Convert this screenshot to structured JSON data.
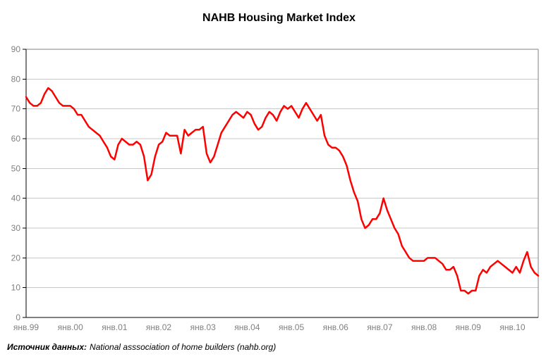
{
  "title": "NAHB Housing Market Index",
  "source_note": {
    "label": "Источник данных:",
    "text": "National asssociation of home builders (nahb.org)"
  },
  "colors": {
    "line": "#FF0000",
    "gridline": "#C8C8C8",
    "plot_border": "#808080",
    "axis": "#000000",
    "tick_label": "#808080",
    "background": "#FFFFFF"
  },
  "chart_data": {
    "type": "line",
    "title": "NAHB Housing Market Index",
    "xlabel": "",
    "ylabel": "",
    "ylim": [
      0,
      90
    ],
    "y_ticks": [
      0,
      10,
      20,
      30,
      40,
      50,
      60,
      70,
      80,
      90
    ],
    "x_tick_labels": [
      "янв.99",
      "янв.00",
      "янв.01",
      "янв.02",
      "янв.03",
      "янв.04",
      "янв.05",
      "янв.06",
      "янв.07",
      "янв.08",
      "янв.09",
      "янв.10"
    ],
    "grid": "horizontal",
    "legend_position": "none",
    "frequency": "monthly",
    "start_month": "1999-01",
    "end_month": "2010-08",
    "series": [
      {
        "name": "NAHB Housing Market Index",
        "values": [
          74,
          72,
          71,
          71,
          72,
          75,
          77,
          76,
          74,
          72,
          71,
          71,
          71,
          70,
          68,
          68,
          66,
          64,
          63,
          62,
          61,
          59,
          57,
          54,
          53,
          58,
          60,
          59,
          58,
          58,
          59,
          58,
          54,
          46,
          48,
          54,
          58,
          59,
          62,
          61,
          61,
          61,
          55,
          63,
          61,
          62,
          63,
          63,
          64,
          55,
          52,
          54,
          58,
          62,
          64,
          66,
          68,
          69,
          68,
          67,
          69,
          68,
          65,
          63,
          64,
          67,
          69,
          68,
          66,
          69,
          71,
          70,
          71,
          69,
          67,
          70,
          72,
          70,
          68,
          66,
          68,
          61,
          58,
          57,
          57,
          56,
          54,
          51,
          46,
          42,
          39,
          33,
          30,
          31,
          33,
          33,
          35,
          40,
          36,
          33,
          30,
          28,
          24,
          22,
          20,
          19,
          19,
          19,
          19,
          20,
          20,
          20,
          19,
          18,
          16,
          16,
          17,
          14,
          9,
          9,
          8,
          9,
          9,
          14,
          16,
          15,
          17,
          18,
          19,
          18,
          17,
          16,
          15,
          17,
          15,
          19,
          22,
          17,
          15,
          14
        ]
      }
    ]
  }
}
